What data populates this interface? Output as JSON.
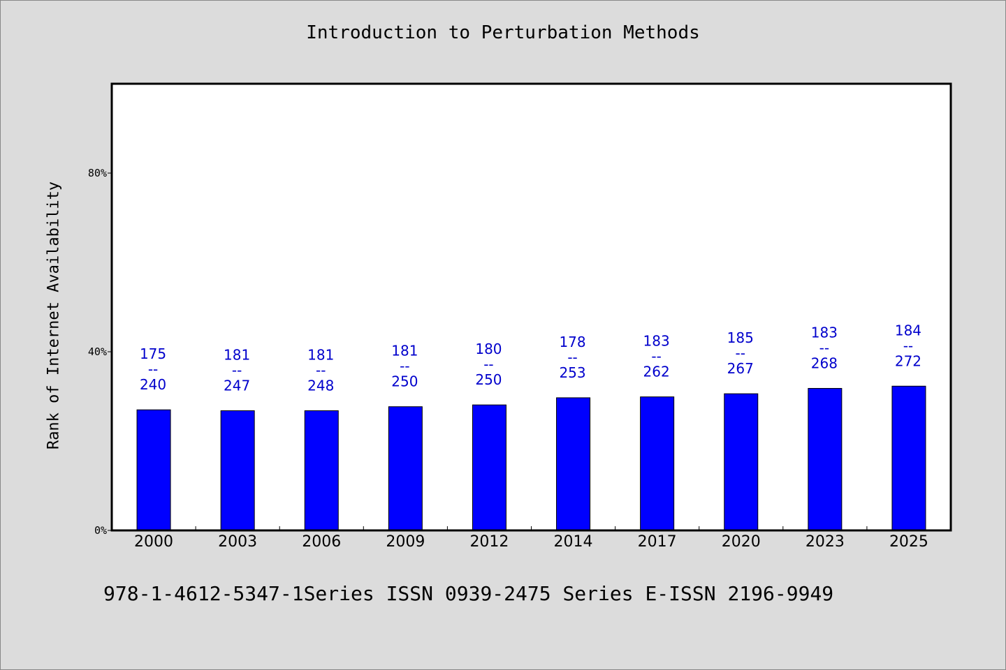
{
  "chart_data": {
    "type": "bar",
    "title": "Introduction to Perturbation Methods",
    "ylabel": "Rank of Internet Availability",
    "xlabel": "",
    "categories": [
      "2000",
      "2003",
      "2006",
      "2009",
      "2012",
      "2014",
      "2017",
      "2020",
      "2023",
      "2025"
    ],
    "values": [
      0.27,
      0.268,
      0.268,
      0.277,
      0.281,
      0.297,
      0.299,
      0.306,
      0.318,
      0.323
    ],
    "bar_labels": [
      {
        "top": "175",
        "sep": "--",
        "bottom": "240"
      },
      {
        "top": "181",
        "sep": "--",
        "bottom": "247"
      },
      {
        "top": "181",
        "sep": "--",
        "bottom": "248"
      },
      {
        "top": "181",
        "sep": "--",
        "bottom": "250"
      },
      {
        "top": "180",
        "sep": "--",
        "bottom": "250"
      },
      {
        "top": "178",
        "sep": "--",
        "bottom": "253"
      },
      {
        "top": "183",
        "sep": "--",
        "bottom": "262"
      },
      {
        "top": "185",
        "sep": "--",
        "bottom": "267"
      },
      {
        "top": "183",
        "sep": "--",
        "bottom": "268"
      },
      {
        "top": "184",
        "sep": "--",
        "bottom": "272"
      }
    ],
    "ylim": [
      0,
      1.0
    ],
    "yticks": [
      {
        "value": 0,
        "label": "0%"
      },
      {
        "value": 0.4,
        "label": "40%"
      },
      {
        "value": 0.8,
        "label": "80%"
      }
    ],
    "grid": false,
    "colors": {
      "bar": "#0000ff",
      "bar_edge": "#000000",
      "label": "#0000cc"
    }
  },
  "footnote": "978-1-4612-5347-1Series ISSN 0939-2475 Series E-ISSN 2196-9949"
}
